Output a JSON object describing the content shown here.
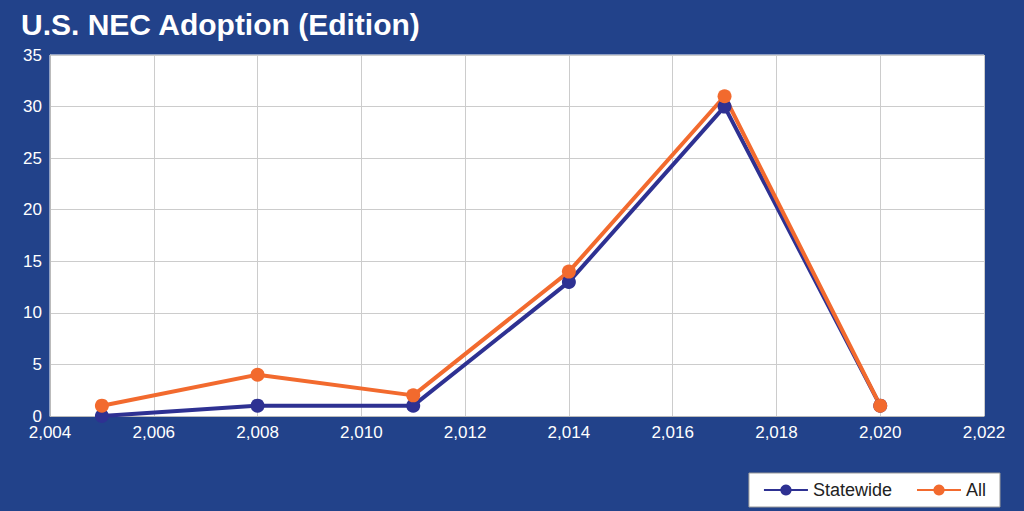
{
  "chart_data": {
    "type": "line",
    "title": "U.S. NEC Adoption (Edition)",
    "x": [
      2005,
      2008,
      2011,
      2014,
      2017,
      2020
    ],
    "series": [
      {
        "name": "Statewide",
        "color": "#2e3192",
        "values": [
          0,
          1,
          1,
          13,
          30,
          1
        ]
      },
      {
        "name": "All",
        "color": "#f26a2e",
        "values": [
          1,
          4,
          2,
          14,
          31,
          1
        ]
      }
    ],
    "xlim": [
      2004,
      2022
    ],
    "xticks": [
      2004,
      2006,
      2008,
      2010,
      2012,
      2014,
      2016,
      2018,
      2020,
      2022
    ],
    "ylim": [
      0,
      35
    ],
    "yticks": [
      0,
      5,
      10,
      15,
      20,
      25,
      30,
      35
    ],
    "grid": true,
    "legend": "lower right",
    "marker": "circle"
  }
}
